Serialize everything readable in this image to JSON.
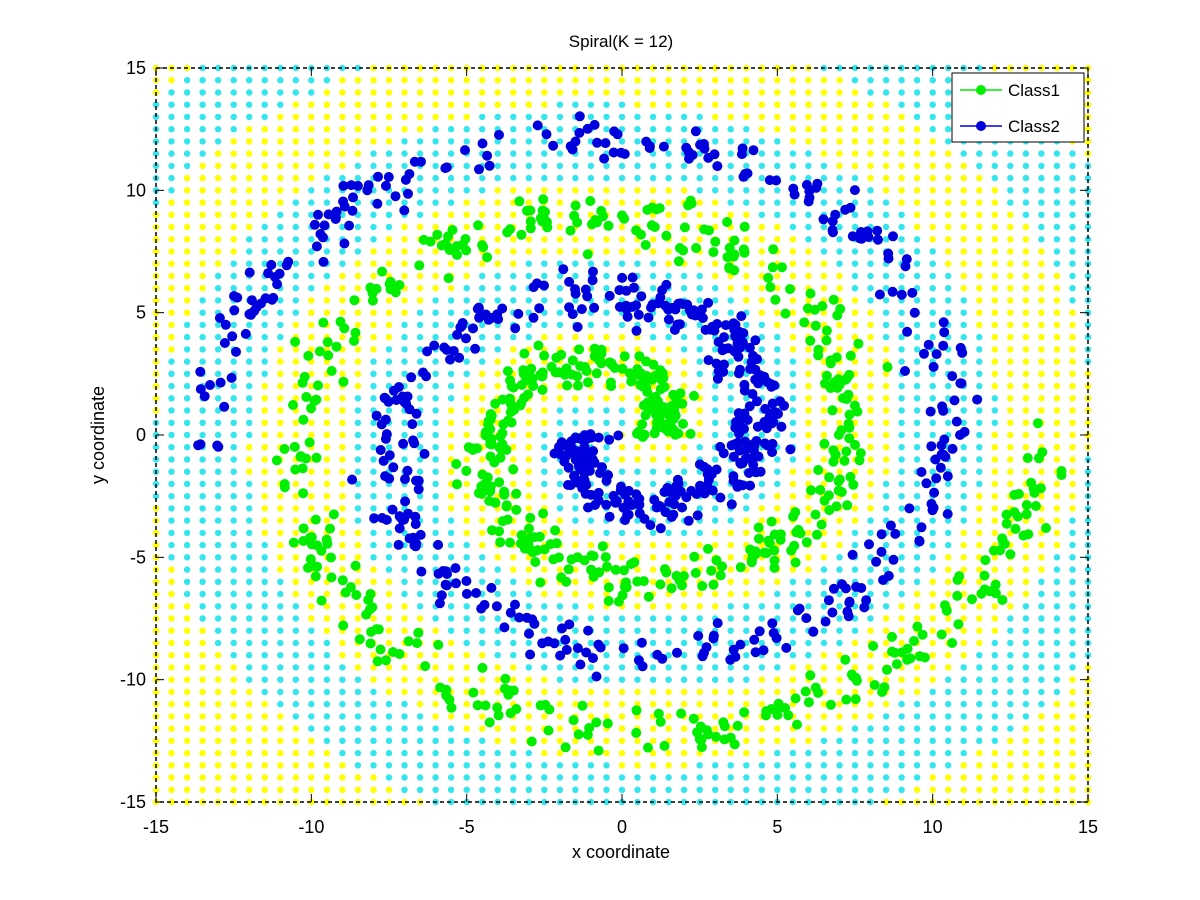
{
  "chart_data": {
    "type": "scatter",
    "title": "Spiral(K = 12)",
    "xlabel": "x coordinate",
    "ylabel": "y coordinate",
    "xlim": [
      -15,
      15
    ],
    "ylim": [
      -15,
      15
    ],
    "xticks": [
      -15,
      -10,
      -5,
      0,
      5,
      10,
      15
    ],
    "yticks": [
      -15,
      -10,
      -5,
      0,
      5,
      10,
      15
    ],
    "xtick_labels": [
      "-15",
      "-10",
      "-5",
      "0",
      "5",
      "10",
      "15"
    ],
    "ytick_labels": [
      "-15",
      "-10",
      "-5",
      "0",
      "5",
      "10",
      "15"
    ],
    "grid": false,
    "legend_position": "top-right",
    "background": {
      "description_kind": "decision-region-grid",
      "step": 0.5,
      "class1_region_color": "#ffff00",
      "class2_region_color": "#33e6ee"
    },
    "series": [
      {
        "name": "Class1",
        "color": "#00ee00",
        "spiral_start_angle_deg": 0,
        "points_per_turn": 260,
        "r_range": [
          2.2,
          14.2
        ]
      },
      {
        "name": "Class2",
        "color": "#0000dd",
        "spiral_start_angle_deg": 180,
        "points_per_turn": 260,
        "r_range": [
          1.4,
          13.6
        ]
      }
    ],
    "legend": [
      {
        "label": "Class1",
        "color": "#00ee00"
      },
      {
        "label": "Class2",
        "color": "#0000dd"
      }
    ]
  }
}
